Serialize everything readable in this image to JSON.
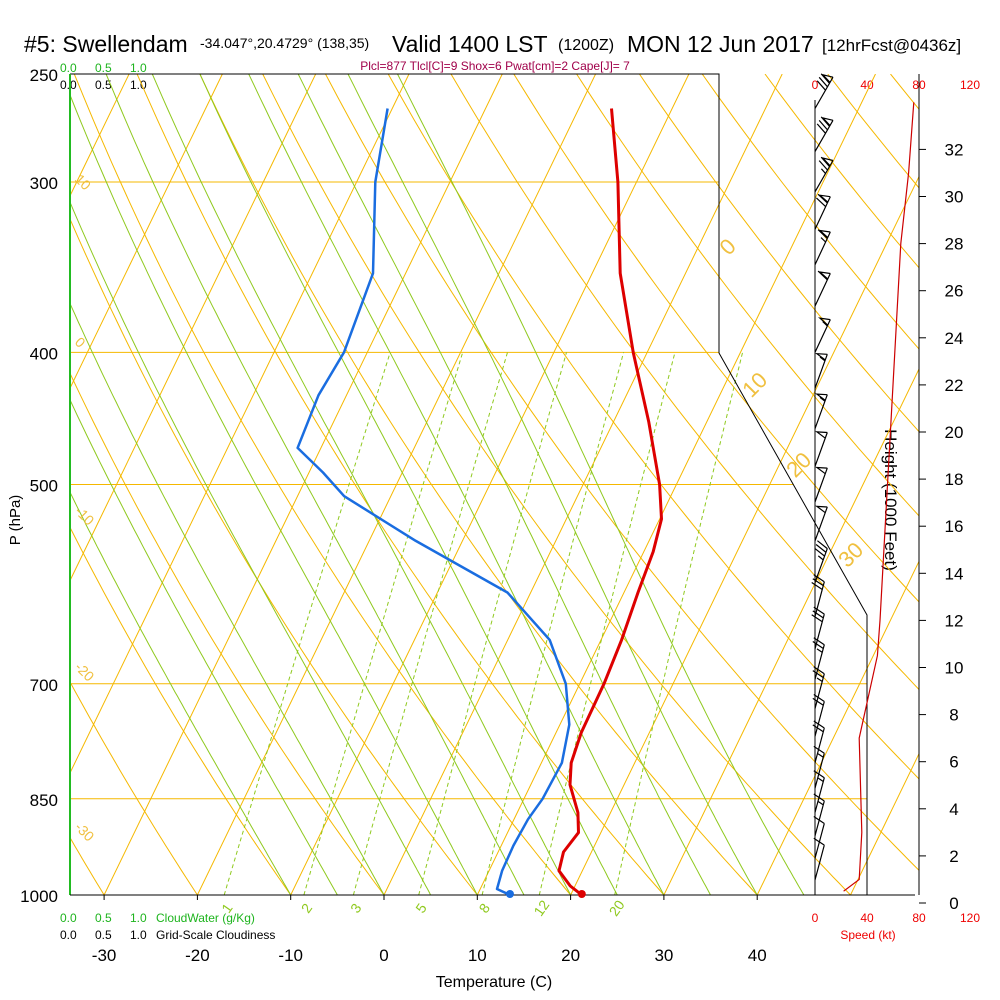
{
  "header": {
    "station": "#5: Swellendam",
    "coords": "-34.047°,20.4729° (138,35)",
    "valid_main": "Valid 1400 LST",
    "valid_utc": "(1200Z)",
    "date": "MON 12 Jun 2017",
    "forecast": "[12hrFcst@0436z]",
    "params": "Plcl=877 Tlcl[C]=9 Shox=6 Pwat[cm]=2 Cape[J]= 7"
  },
  "cloud_scale": {
    "ticks": [
      "0.0",
      "0.5",
      "1.0"
    ],
    "cloudwater_label": "CloudWater (g/Kg)",
    "cloudiness_label": "Grid-Scale Cloudiness"
  },
  "speed_scale": {
    "ticks": [
      "0",
      "40",
      "80",
      "120"
    ],
    "label": "Speed (kt)"
  },
  "colors": {
    "temperature": "#dd0000",
    "dewpoint": "#1a6de0",
    "isotherm": "#f5b800",
    "dry_adiabat": "#f5b800",
    "moist_adiabat": "#8fc91e",
    "mixing_ratio": "#8fc91e",
    "cloudwater": "#1db41d",
    "speed": "#cc0000",
    "params": "#a0004a"
  },
  "chart_data": {
    "type": "line",
    "title": "Skew-T Log-P",
    "xlabel": "Temperature (C)",
    "ylabel": "P (hPa)",
    "y2label": "Height (1000 Feet)",
    "x_ticks": [
      -30,
      -20,
      -10,
      0,
      10,
      20,
      30,
      40
    ],
    "p_ticks": [
      250,
      300,
      400,
      500,
      700,
      850,
      1000
    ],
    "height_ticks": [
      0,
      2,
      4,
      6,
      8,
      10,
      12,
      14,
      16,
      18,
      20,
      22,
      24,
      26,
      28,
      30,
      32
    ],
    "dry_adiabat_labels": [
      {
        "text": "10",
        "value": 10
      },
      {
        "text": "0",
        "value": 0
      },
      {
        "text": "-10",
        "value": -10
      },
      {
        "text": "-20",
        "value": -20
      },
      {
        "text": "-30",
        "value": -30
      },
      {
        "text": "0",
        "value": 0
      },
      {
        "text": "10",
        "value": 10
      },
      {
        "text": "20",
        "value": 20
      },
      {
        "text": "30",
        "value": 30
      }
    ],
    "mixing_ratio_labels": [
      "1",
      "2",
      "3",
      "5",
      "8",
      "12",
      "20"
    ],
    "series": [
      {
        "name": "Temperature",
        "points": [
          {
            "p": 1000,
            "t": 21.2
          },
          {
            "p": 985,
            "t": 19.5
          },
          {
            "p": 960,
            "t": 17.5
          },
          {
            "p": 930,
            "t": 17.0
          },
          {
            "p": 900,
            "t": 17.6
          },
          {
            "p": 870,
            "t": 16.5
          },
          {
            "p": 830,
            "t": 14.2
          },
          {
            "p": 800,
            "t": 13.2
          },
          {
            "p": 760,
            "t": 12.7
          },
          {
            "p": 700,
            "t": 12.6
          },
          {
            "p": 650,
            "t": 12.2
          },
          {
            "p": 600,
            "t": 11.5
          },
          {
            "p": 560,
            "t": 11.0
          },
          {
            "p": 530,
            "t": 10.2
          },
          {
            "p": 500,
            "t": 8.2
          },
          {
            "p": 450,
            "t": 3.8
          },
          {
            "p": 400,
            "t": -1.5
          },
          {
            "p": 350,
            "t": -7.0
          },
          {
            "p": 300,
            "t": -12.0
          },
          {
            "p": 265,
            "t": -16.5
          }
        ]
      },
      {
        "name": "Dewpoint",
        "points": [
          {
            "p": 1000,
            "t": 13.5
          },
          {
            "p": 990,
            "t": 11.8
          },
          {
            "p": 960,
            "t": 11.4
          },
          {
            "p": 920,
            "t": 11.3
          },
          {
            "p": 880,
            "t": 11.5
          },
          {
            "p": 850,
            "t": 12.0
          },
          {
            "p": 800,
            "t": 12.2
          },
          {
            "p": 750,
            "t": 11.0
          },
          {
            "p": 700,
            "t": 8.5
          },
          {
            "p": 650,
            "t": 4.5
          },
          {
            "p": 600,
            "t": -2.5
          },
          {
            "p": 550,
            "t": -15.0
          },
          {
            "p": 510,
            "t": -25.0
          },
          {
            "p": 490,
            "t": -28.5
          },
          {
            "p": 470,
            "t": -32.5
          },
          {
            "p": 430,
            "t": -33.0
          },
          {
            "p": 400,
            "t": -32.5
          },
          {
            "p": 350,
            "t": -33.5
          },
          {
            "p": 300,
            "t": -38.0
          },
          {
            "p": 265,
            "t": -40.5
          }
        ]
      }
    ],
    "surface": {
      "temperature": 21.2,
      "dewpoint": 13.5
    },
    "wind_barbs": [
      {
        "p": 265,
        "dir": 300,
        "kt": 80
      },
      {
        "p": 285,
        "dir": 300,
        "kt": 80
      },
      {
        "p": 305,
        "dir": 300,
        "kt": 75
      },
      {
        "p": 325,
        "dir": 295,
        "kt": 70
      },
      {
        "p": 345,
        "dir": 295,
        "kt": 65
      },
      {
        "p": 370,
        "dir": 295,
        "kt": 60
      },
      {
        "p": 400,
        "dir": 295,
        "kt": 55
      },
      {
        "p": 425,
        "dir": 290,
        "kt": 55
      },
      {
        "p": 455,
        "dir": 290,
        "kt": 55
      },
      {
        "p": 485,
        "dir": 290,
        "kt": 50
      },
      {
        "p": 515,
        "dir": 290,
        "kt": 50
      },
      {
        "p": 550,
        "dir": 290,
        "kt": 50
      },
      {
        "p": 590,
        "dir": 290,
        "kt": 35
      },
      {
        "p": 625,
        "dir": 285,
        "kt": 30
      },
      {
        "p": 660,
        "dir": 285,
        "kt": 30
      },
      {
        "p": 695,
        "dir": 285,
        "kt": 25
      },
      {
        "p": 730,
        "dir": 285,
        "kt": 25
      },
      {
        "p": 765,
        "dir": 285,
        "kt": 20
      },
      {
        "p": 800,
        "dir": 285,
        "kt": 20
      },
      {
        "p": 835,
        "dir": 285,
        "kt": 15
      },
      {
        "p": 870,
        "dir": 285,
        "kt": 15
      },
      {
        "p": 905,
        "dir": 285,
        "kt": 15
      },
      {
        "p": 940,
        "dir": 285,
        "kt": 10
      },
      {
        "p": 975,
        "dir": 285,
        "kt": 10
      }
    ],
    "speed_profile": [
      {
        "h": 0.5,
        "kt": 22
      },
      {
        "h": 1,
        "kt": 34
      },
      {
        "h": 3,
        "kt": 36
      },
      {
        "h": 5,
        "kt": 35
      },
      {
        "h": 7,
        "kt": 34
      },
      {
        "h": 9,
        "kt": 42
      },
      {
        "h": 10.5,
        "kt": 48
      },
      {
        "h": 12,
        "kt": 50
      },
      {
        "h": 16,
        "kt": 54
      },
      {
        "h": 20,
        "kt": 58
      },
      {
        "h": 24,
        "kt": 62
      },
      {
        "h": 28,
        "kt": 66
      },
      {
        "h": 31,
        "kt": 72
      },
      {
        "h": 34,
        "kt": 76
      }
    ]
  }
}
